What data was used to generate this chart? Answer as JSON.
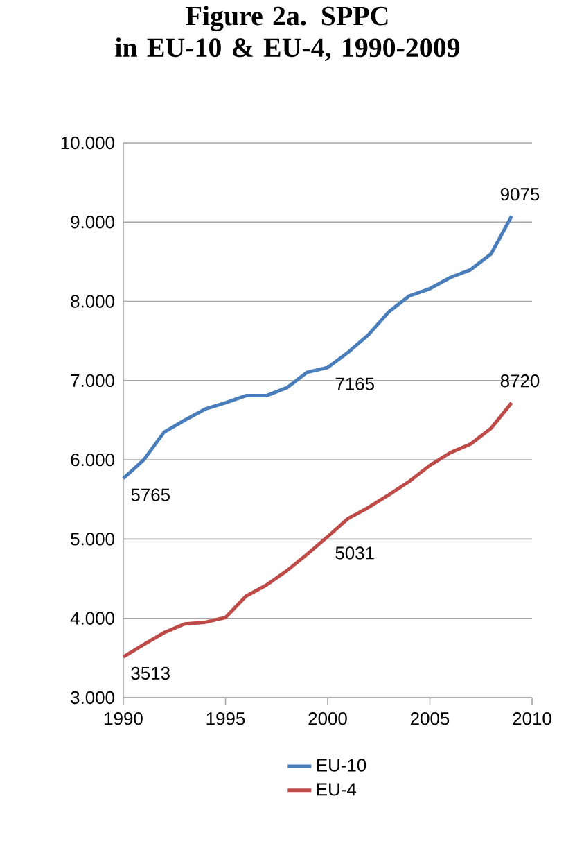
{
  "chart_data": {
    "type": "line",
    "title": "Figure 2a. SPPC\nin EU-10 & EU-4, 1990-2009",
    "x": [
      1990,
      1991,
      1992,
      1993,
      1994,
      1995,
      1996,
      1997,
      1998,
      1999,
      2000,
      2001,
      2002,
      2003,
      2004,
      2005,
      2006,
      2007,
      2008,
      2009
    ],
    "series": [
      {
        "name": "EU-10",
        "color": "#4a7ebb",
        "values": [
          5765,
          6000,
          6350,
          6500,
          6640,
          6720,
          6810,
          6810,
          6910,
          7105,
          7165,
          7357,
          7580,
          7870,
          8070,
          8160,
          8300,
          8400,
          8600,
          9075
        ]
      },
      {
        "name": "EU-4",
        "color": "#be4b48",
        "values": [
          3513,
          3670,
          3820,
          3930,
          3950,
          4010,
          4280,
          4420,
          4600,
          4810,
          5031,
          5260,
          5400,
          5560,
          5730,
          5930,
          6090,
          6200,
          6400,
          6720
        ]
      }
    ],
    "xlim": [
      1990,
      2010
    ],
    "xticks": [
      1990,
      1995,
      2000,
      2005,
      2010
    ],
    "ylim": [
      3000,
      10000
    ],
    "yticks": [
      {
        "value": 3000,
        "label": "3.000"
      },
      {
        "value": 4000,
        "label": "4.000"
      },
      {
        "value": 5000,
        "label": "5.000"
      },
      {
        "value": 6000,
        "label": "6.000"
      },
      {
        "value": 7000,
        "label": "7.000"
      },
      {
        "value": 8000,
        "label": "8.000"
      },
      {
        "value": 9000,
        "label": "9.000"
      },
      {
        "value": 10000,
        "label": "10.000"
      }
    ],
    "annotations": [
      {
        "text": "9075",
        "x": 2009,
        "y": 9075
      },
      {
        "text": "7165",
        "x": 2000,
        "y": 7165
      },
      {
        "text": "5765",
        "x": 1990,
        "y": 5765
      },
      {
        "text": "8720",
        "x": 2009,
        "y": 6720
      },
      {
        "text": "5031",
        "x": 2000,
        "y": 5031
      },
      {
        "text": "3513",
        "x": 1990,
        "y": 3513
      }
    ],
    "grid": "y",
    "legend": "bottom"
  }
}
